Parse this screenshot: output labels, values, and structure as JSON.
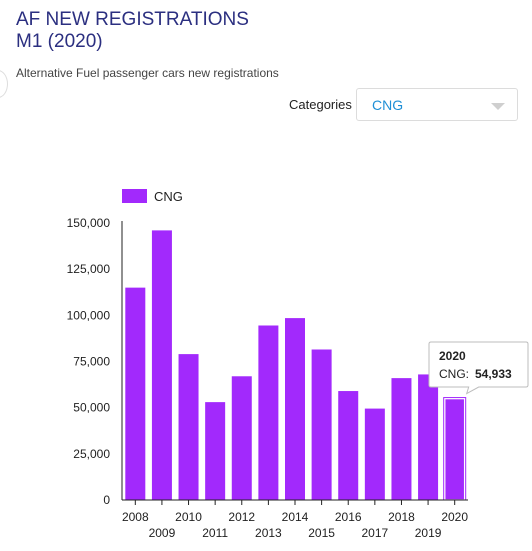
{
  "header": {
    "title": "AF NEW REGISTRATIONS\nM1 (2020)",
    "subtitle": "Alternative Fuel passenger cars new registrations"
  },
  "filter": {
    "label": "Categories",
    "selected": "CNG"
  },
  "tooltip": {
    "year": "2020",
    "series": "CNG:",
    "value": "54,933"
  },
  "colors": {
    "bar": "#a229fc",
    "bar_highlight": "#a229fc",
    "axis": "#222222",
    "accent": "#1f8fd6"
  },
  "chart_data": {
    "type": "bar",
    "categories": [
      "2008",
      "2009",
      "2010",
      "2011",
      "2012",
      "2013",
      "2014",
      "2015",
      "2016",
      "2017",
      "2018",
      "2019",
      "2020"
    ],
    "series": [
      {
        "name": "CNG",
        "values": [
          115000,
          146000,
          79000,
          53000,
          67000,
          94500,
          98500,
          81500,
          59000,
          49500,
          66000,
          68000,
          54933
        ]
      }
    ],
    "ylim": [
      0,
      150000
    ],
    "yticks": [
      0,
      25000,
      50000,
      75000,
      100000,
      125000,
      150000
    ],
    "ytick_labels": [
      "0",
      "25,000",
      "50,000",
      "75,000",
      "100,000",
      "125,000",
      "150,000"
    ],
    "legend": "top-left",
    "grid": false,
    "highlighted_category": "2020"
  }
}
